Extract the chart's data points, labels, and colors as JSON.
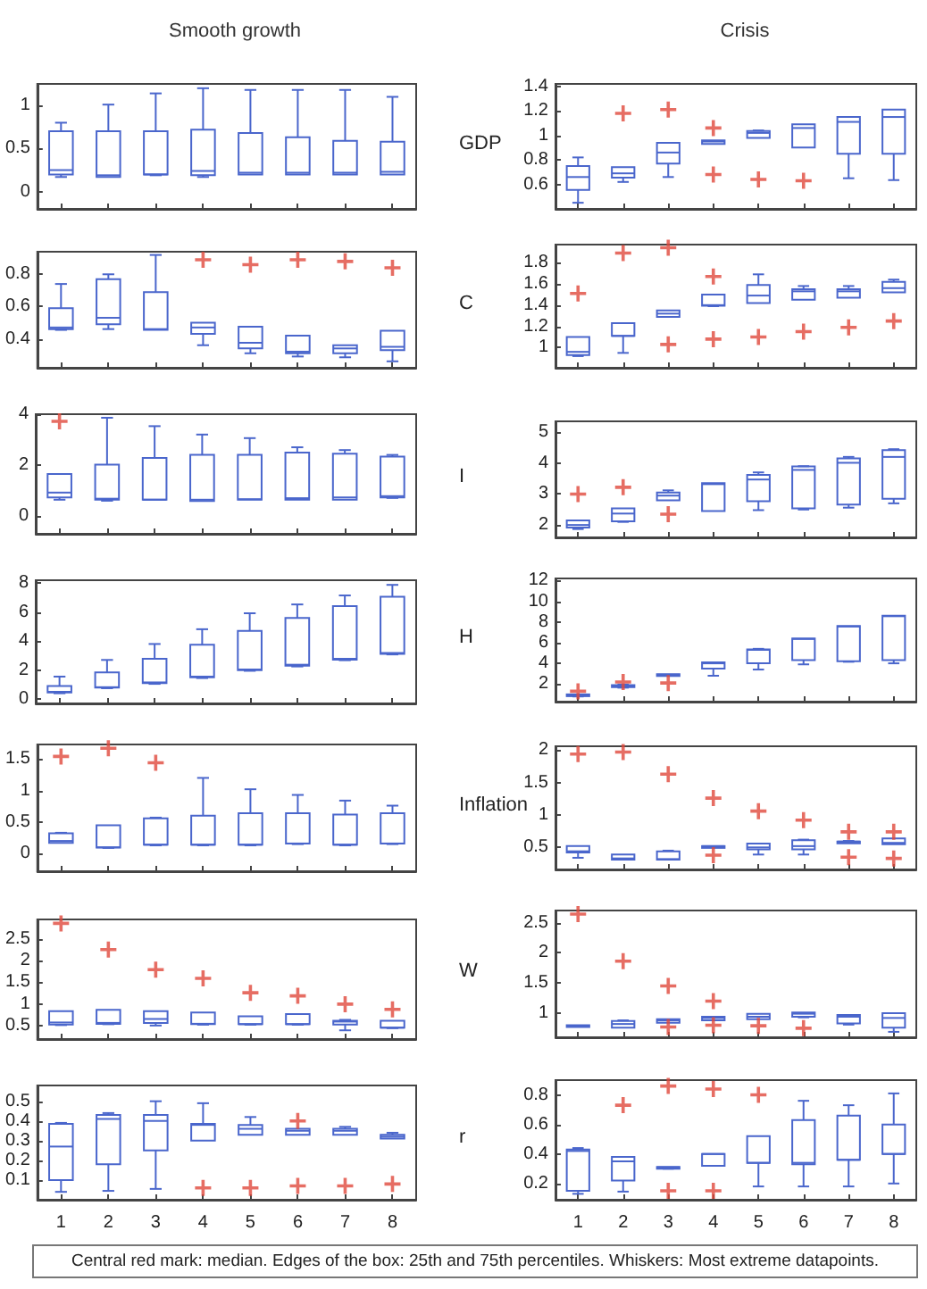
{
  "chart_data": [
    {
      "type": "box",
      "title": "Smooth growth",
      "categories": [
        "1",
        "2",
        "3",
        "4",
        "5",
        "6",
        "7",
        "8"
      ],
      "ylim": [
        -0.2,
        1.25
      ],
      "yticks": [
        0,
        0.5,
        1
      ],
      "tick_labels": "y",
      "grid": false,
      "marker": "cross",
      "series": [
        {
          "type": "box",
          "color": "#4a66cc",
          "boxes": [
            {
              "low": 0.17,
              "q1": 0.2,
              "median": 0.25,
              "q3": 0.7,
              "high": 0.8
            },
            {
              "low": 0.17,
              "q1": 0.17,
              "median": 0.19,
              "q3": 0.7,
              "high": 1.01
            },
            {
              "low": 0.19,
              "q1": 0.2,
              "median": 0.2,
              "q3": 0.7,
              "high": 1.14
            },
            {
              "low": 0.17,
              "q1": 0.19,
              "median": 0.24,
              "q3": 0.72,
              "high": 1.2
            },
            {
              "low": 0.2,
              "q1": 0.2,
              "median": 0.22,
              "q3": 0.68,
              "high": 1.18
            },
            {
              "low": 0.2,
              "q1": 0.2,
              "median": 0.22,
              "q3": 0.63,
              "high": 1.18
            },
            {
              "low": 0.2,
              "q1": 0.2,
              "median": 0.22,
              "q3": 0.59,
              "high": 1.18
            },
            {
              "low": 0.2,
              "q1": 0.2,
              "median": 0.23,
              "q3": 0.58,
              "high": 1.1
            }
          ]
        }
      ]
    },
    {
      "type": "box",
      "title": "Crisis",
      "ylabel": "GDP",
      "categories": [
        "1",
        "2",
        "3",
        "4",
        "5",
        "6",
        "7",
        "8"
      ],
      "ylim": [
        0.4,
        1.42
      ],
      "yticks": [
        0.6,
        0.8,
        1,
        1.2,
        1.4
      ],
      "tick_labels": "y",
      "grid": false,
      "marker": "cross",
      "series": [
        {
          "type": "box",
          "color": "#4a66cc",
          "boxes": [
            {
              "low": 0.45,
              "q1": 0.555,
              "median": 0.66,
              "q3": 0.75,
              "high": 0.82
            },
            {
              "low": 0.62,
              "q1": 0.655,
              "median": 0.69,
              "q3": 0.74,
              "high": 0.74
            },
            {
              "low": 0.66,
              "q1": 0.77,
              "median": 0.86,
              "q3": 0.94,
              "high": 0.94
            },
            {
              "low": 0.93,
              "q1": 0.93,
              "median": 0.95,
              "q3": 0.96,
              "high": 0.96
            },
            {
              "low": 0.98,
              "q1": 0.98,
              "median": 1.02,
              "q3": 1.035,
              "high": 1.04
            },
            {
              "low": 0.9,
              "q1": 0.9,
              "median": 1.06,
              "q3": 1.09,
              "high": 1.09
            },
            {
              "low": 0.65,
              "q1": 0.85,
              "median": 1.11,
              "q3": 1.15,
              "high": 1.15
            },
            {
              "low": 0.635,
              "q1": 0.85,
              "median": 1.15,
              "q3": 1.21,
              "high": 1.21
            }
          ]
        },
        {
          "type": "scatter",
          "color": "#e0483c",
          "x": [
            "2",
            "3",
            "4",
            "4",
            "5",
            "6"
          ],
          "values": [
            1.18,
            1.21,
            1.06,
            0.68,
            0.64,
            0.63
          ]
        }
      ]
    },
    {
      "type": "box",
      "categories": [
        "1",
        "2",
        "3",
        "4",
        "5",
        "6",
        "7",
        "8"
      ],
      "ylim": [
        0.22,
        0.94
      ],
      "yticks": [
        0.4,
        0.6,
        0.8
      ],
      "tick_labels": "y",
      "grid": false,
      "marker": "cross",
      "series": [
        {
          "type": "box",
          "color": "#4a66cc",
          "boxes": [
            {
              "low": 0.455,
              "q1": 0.46,
              "median": 0.47,
              "q3": 0.59,
              "high": 0.74
            },
            {
              "low": 0.46,
              "q1": 0.49,
              "median": 0.53,
              "q3": 0.77,
              "high": 0.8
            },
            {
              "low": 0.455,
              "q1": 0.455,
              "median": 0.46,
              "q3": 0.69,
              "high": 0.92
            },
            {
              "low": 0.36,
              "q1": 0.43,
              "median": 0.47,
              "q3": 0.5,
              "high": 0.5
            },
            {
              "low": 0.31,
              "q1": 0.34,
              "median": 0.375,
              "q3": 0.475,
              "high": 0.475
            },
            {
              "low": 0.29,
              "q1": 0.31,
              "median": 0.32,
              "q3": 0.42,
              "high": 0.42
            },
            {
              "low": 0.285,
              "q1": 0.31,
              "median": 0.34,
              "q3": 0.36,
              "high": 0.36
            },
            {
              "low": 0.26,
              "q1": 0.33,
              "median": 0.35,
              "q3": 0.45,
              "high": 0.45
            }
          ]
        },
        {
          "type": "scatter",
          "color": "#e0483c",
          "x": [
            "4",
            "5",
            "6",
            "7",
            "8"
          ],
          "values": [
            0.89,
            0.86,
            0.89,
            0.88,
            0.84
          ]
        }
      ]
    },
    {
      "type": "box",
      "ylabel": "C",
      "categories": [
        "1",
        "2",
        "3",
        "4",
        "5",
        "6",
        "7",
        "8"
      ],
      "ylim": [
        0.81,
        1.97
      ],
      "yticks": [
        1,
        1.2,
        1.4,
        1.6,
        1.8
      ],
      "tick_labels": "y",
      "grid": false,
      "marker": "cross",
      "series": [
        {
          "type": "box",
          "color": "#4a66cc",
          "boxes": [
            {
              "low": 0.92,
              "q1": 0.93,
              "median": 0.96,
              "q3": 1.1,
              "high": 1.1
            },
            {
              "low": 0.95,
              "q1": 1.11,
              "median": 1.11,
              "q3": 1.23,
              "high": 1.23
            },
            {
              "low": 1.29,
              "q1": 1.29,
              "median": 1.32,
              "q3": 1.35,
              "high": 1.35
            },
            {
              "low": 1.39,
              "q1": 1.395,
              "median": 1.4,
              "q3": 1.5,
              "high": 1.5
            },
            {
              "low": 1.42,
              "q1": 1.42,
              "median": 1.49,
              "q3": 1.59,
              "high": 1.69
            },
            {
              "low": 1.45,
              "q1": 1.45,
              "median": 1.53,
              "q3": 1.55,
              "high": 1.58
            },
            {
              "low": 1.47,
              "q1": 1.47,
              "median": 1.53,
              "q3": 1.55,
              "high": 1.58
            },
            {
              "low": 1.52,
              "q1": 1.52,
              "median": 1.56,
              "q3": 1.62,
              "high": 1.64
            }
          ]
        },
        {
          "type": "scatter",
          "color": "#e0483c",
          "x": [
            "1",
            "2",
            "3",
            "3",
            "4",
            "4",
            "5",
            "6",
            "7",
            "8"
          ],
          "values": [
            1.51,
            1.89,
            1.94,
            1.03,
            1.67,
            1.08,
            1.1,
            1.15,
            1.19,
            1.25
          ]
        }
      ]
    },
    {
      "type": "box",
      "categories": [
        "1",
        "2",
        "3",
        "4",
        "5",
        "6",
        "7",
        "8"
      ],
      "ylim": [
        -0.7,
        4
      ],
      "yticks": [
        0,
        2,
        4
      ],
      "tick_labels": "y",
      "grid": false,
      "marker": "cross",
      "series": [
        {
          "type": "box",
          "color": "#4a66cc",
          "boxes": [
            {
              "low": 0.64,
              "q1": 0.73,
              "median": 0.92,
              "q3": 1.65,
              "high": 1.65
            },
            {
              "low": 0.6,
              "q1": 0.64,
              "median": 0.68,
              "q3": 2.02,
              "high": 3.86
            },
            {
              "low": 0.64,
              "q1": 0.64,
              "median": 0.64,
              "q3": 2.28,
              "high": 3.53
            },
            {
              "low": 0.59,
              "q1": 0.59,
              "median": 0.64,
              "q3": 2.4,
              "high": 3.2
            },
            {
              "low": 0.64,
              "q1": 0.64,
              "median": 0.66,
              "q3": 2.4,
              "high": 3.06
            },
            {
              "low": 0.64,
              "q1": 0.64,
              "median": 0.7,
              "q3": 2.49,
              "high": 2.7
            },
            {
              "low": 0.64,
              "q1": 0.64,
              "median": 0.73,
              "q3": 2.45,
              "high": 2.59
            },
            {
              "low": 0.71,
              "q1": 0.73,
              "median": 0.78,
              "q3": 2.33,
              "high": 2.4
            }
          ]
        },
        {
          "type": "scatter",
          "color": "#e0483c",
          "x": [
            "1"
          ],
          "values": [
            3.72
          ]
        }
      ]
    },
    {
      "type": "box",
      "ylabel": "I",
      "categories": [
        "1",
        "2",
        "3",
        "4",
        "5",
        "6",
        "7",
        "8"
      ],
      "ylim": [
        1.6,
        5.35
      ],
      "yticks": [
        2,
        3,
        4,
        5
      ],
      "tick_labels": "y",
      "grid": false,
      "marker": "cross",
      "series": [
        {
          "type": "box",
          "color": "#4a66cc",
          "boxes": [
            {
              "low": 1.87,
              "q1": 1.92,
              "median": 2,
              "q3": 2.15,
              "high": 2.15
            },
            {
              "low": 2.1,
              "q1": 2.12,
              "median": 2.37,
              "q3": 2.54,
              "high": 2.54
            },
            {
              "low": 2.8,
              "q1": 2.8,
              "median": 2.95,
              "q3": 3.05,
              "high": 3.12
            },
            {
              "low": 2.45,
              "q1": 2.45,
              "median": 3.32,
              "q3": 3.35,
              "high": 3.35
            },
            {
              "low": 2.48,
              "q1": 2.77,
              "median": 3.47,
              "q3": 3.62,
              "high": 3.7
            },
            {
              "low": 2.5,
              "q1": 2.54,
              "median": 3.78,
              "q3": 3.89,
              "high": 3.9
            },
            {
              "low": 2.56,
              "q1": 2.66,
              "median": 4.01,
              "q3": 4.15,
              "high": 4.2
            },
            {
              "low": 2.7,
              "q1": 2.85,
              "median": 4.2,
              "q3": 4.42,
              "high": 4.45
            }
          ]
        },
        {
          "type": "scatter",
          "color": "#e0483c",
          "x": [
            "1",
            "2",
            "3"
          ],
          "values": [
            3,
            3.22,
            2.35
          ]
        }
      ]
    },
    {
      "type": "box",
      "categories": [
        "1",
        "2",
        "3",
        "4",
        "5",
        "6",
        "7",
        "8"
      ],
      "ylim": [
        -0.3,
        8.2
      ],
      "yticks": [
        0,
        2,
        4,
        6,
        8
      ],
      "tick_labels": "y",
      "grid": false,
      "marker": "cross",
      "series": [
        {
          "type": "box",
          "color": "#4a66cc",
          "boxes": [
            {
              "low": 0.4,
              "q1": 0.45,
              "median": 0.5,
              "q3": 0.9,
              "high": 1.55
            },
            {
              "low": 0.75,
              "q1": 0.8,
              "median": 0.82,
              "q3": 1.84,
              "high": 2.7
            },
            {
              "low": 1.05,
              "q1": 1.1,
              "median": 1.15,
              "q3": 2.78,
              "high": 3.8
            },
            {
              "low": 1.45,
              "q1": 1.5,
              "median": 1.55,
              "q3": 3.75,
              "high": 4.82
            },
            {
              "low": 1.95,
              "q1": 2,
              "median": 2.04,
              "q3": 4.7,
              "high": 5.92
            },
            {
              "low": 2.25,
              "q1": 2.3,
              "median": 2.37,
              "q3": 5.6,
              "high": 6.53
            },
            {
              "low": 2.68,
              "q1": 2.72,
              "median": 2.78,
              "q3": 6.41,
              "high": 7.15
            },
            {
              "low": 3.08,
              "q1": 3.12,
              "median": 3.18,
              "q3": 7.06,
              "high": 7.88
            }
          ]
        }
      ]
    },
    {
      "type": "box",
      "ylabel": "H",
      "categories": [
        "1",
        "2",
        "3",
        "4",
        "5",
        "6",
        "7",
        "8"
      ],
      "ylim": [
        0.3,
        12.2
      ],
      "yticks": [
        2,
        4,
        6,
        8,
        10,
        12
      ],
      "tick_labels": "y",
      "grid": false,
      "marker": "cross",
      "series": [
        {
          "type": "box",
          "color": "#4a66cc",
          "boxes": [
            {
              "low": 0.8,
              "q1": 0.85,
              "median": 0.9,
              "q3": 1,
              "high": 1
            },
            {
              "low": 1.65,
              "q1": 1.7,
              "median": 1.8,
              "q3": 1.9,
              "high": 1.95
            },
            {
              "low": 2.85,
              "q1": 2.85,
              "median": 2.9,
              "q3": 2.95,
              "high": 2.95
            },
            {
              "low": 2.8,
              "q1": 3.5,
              "median": 4,
              "q3": 4.1,
              "high": 4.1
            },
            {
              "low": 3.4,
              "q1": 4,
              "median": 5.3,
              "q3": 5.35,
              "high": 5.4
            },
            {
              "low": 3.9,
              "q1": 4.3,
              "median": 6.35,
              "q3": 6.4,
              "high": 6.4
            },
            {
              "low": 4.15,
              "q1": 4.2,
              "median": 7.55,
              "q3": 7.6,
              "high": 7.6
            },
            {
              "low": 4,
              "q1": 4.3,
              "median": 8.55,
              "q3": 8.6,
              "high": 8.6
            }
          ]
        },
        {
          "type": "scatter",
          "color": "#e0483c",
          "x": [
            "1",
            "2",
            "3"
          ],
          "values": [
            1.3,
            2.2,
            2.1
          ]
        }
      ]
    },
    {
      "type": "box",
      "categories": [
        "1",
        "2",
        "3",
        "4",
        "5",
        "6",
        "7",
        "8"
      ],
      "ylim": [
        -0.28,
        1.73
      ],
      "yticks": [
        0,
        0.5,
        1,
        1.5
      ],
      "tick_labels": "y",
      "grid": false,
      "marker": "cross",
      "series": [
        {
          "type": "box",
          "color": "#4a66cc",
          "boxes": [
            {
              "low": 0.17,
              "q1": 0.17,
              "median": 0.2,
              "q3": 0.32,
              "high": 0.33
            },
            {
              "low": 0.09,
              "q1": 0.095,
              "median": 0.1,
              "q3": 0.45,
              "high": 0.45
            },
            {
              "low": 0.13,
              "q1": 0.14,
              "median": 0.14,
              "q3": 0.56,
              "high": 0.57
            },
            {
              "low": 0.13,
              "q1": 0.14,
              "median": 0.14,
              "q3": 0.6,
              "high": 1.2
            },
            {
              "low": 0.13,
              "q1": 0.14,
              "median": 0.14,
              "q3": 0.64,
              "high": 1.02
            },
            {
              "low": 0.15,
              "q1": 0.16,
              "median": 0.16,
              "q3": 0.64,
              "high": 0.93
            },
            {
              "low": 0.13,
              "q1": 0.14,
              "median": 0.14,
              "q3": 0.62,
              "high": 0.84
            },
            {
              "low": 0.15,
              "q1": 0.16,
              "median": 0.16,
              "q3": 0.64,
              "high": 0.76
            }
          ]
        },
        {
          "type": "scatter",
          "color": "#e0483c",
          "x": [
            "1",
            "2",
            "3"
          ],
          "values": [
            1.54,
            1.67,
            1.44
          ]
        }
      ]
    },
    {
      "type": "box",
      "ylabel": "Inflation",
      "categories": [
        "1",
        "2",
        "3",
        "4",
        "5",
        "6",
        "7",
        "8"
      ],
      "ylim": [
        0.16,
        2.06
      ],
      "yticks": [
        0.5,
        1,
        1.5,
        2
      ],
      "tick_labels": "y",
      "grid": false,
      "marker": "cross",
      "series": [
        {
          "type": "box",
          "color": "#4a66cc",
          "boxes": [
            {
              "low": 0.34,
              "q1": 0.42,
              "median": 0.44,
              "q3": 0.52,
              "high": 0.52
            },
            {
              "low": 0.31,
              "q1": 0.31,
              "median": 0.33,
              "q3": 0.39,
              "high": 0.39
            },
            {
              "low": 0.31,
              "q1": 0.31,
              "median": 0.32,
              "q3": 0.44,
              "high": 0.45
            },
            {
              "low": 0.51,
              "q1": 0.51,
              "median": 0.52,
              "q3": 0.52,
              "high": 0.52
            },
            {
              "low": 0.39,
              "q1": 0.47,
              "median": 0.5,
              "q3": 0.56,
              "high": 0.56
            },
            {
              "low": 0.39,
              "q1": 0.47,
              "median": 0.52,
              "q3": 0.61,
              "high": 0.62
            },
            {
              "low": 0.58,
              "q1": 0.58,
              "median": 0.59,
              "q3": 0.59,
              "high": 0.6
            },
            {
              "low": 0.55,
              "q1": 0.55,
              "median": 0.57,
              "q3": 0.64,
              "high": 0.64
            }
          ]
        },
        {
          "type": "scatter",
          "color": "#e0483c",
          "x": [
            "1",
            "2",
            "3",
            "4",
            "4",
            "5",
            "6",
            "7",
            "7",
            "8",
            "8"
          ],
          "values": [
            1.94,
            1.97,
            1.63,
            1.26,
            0.38,
            1.06,
            0.92,
            0.74,
            0.35,
            0.74,
            0.33
          ]
        }
      ]
    },
    {
      "type": "box",
      "categories": [
        "1",
        "2",
        "3",
        "4",
        "5",
        "6",
        "7",
        "8"
      ],
      "ylim": [
        0.2,
        2.94
      ],
      "yticks": [
        0.5,
        1,
        1.5,
        2,
        2.5
      ],
      "tick_labels": "y",
      "grid": false,
      "marker": "cross",
      "series": [
        {
          "type": "box",
          "color": "#4a66cc",
          "boxes": [
            {
              "low": 0.52,
              "q1": 0.53,
              "median": 0.58,
              "q3": 0.84,
              "high": 0.84
            },
            {
              "low": 0.54,
              "q1": 0.55,
              "median": 0.57,
              "q3": 0.87,
              "high": 0.87
            },
            {
              "low": 0.51,
              "q1": 0.57,
              "median": 0.66,
              "q3": 0.84,
              "high": 0.84
            },
            {
              "low": 0.53,
              "q1": 0.54,
              "median": 0.55,
              "q3": 0.81,
              "high": 0.81
            },
            {
              "low": 0.53,
              "q1": 0.54,
              "median": 0.54,
              "q3": 0.72,
              "high": 0.72
            },
            {
              "low": 0.53,
              "q1": 0.54,
              "median": 0.54,
              "q3": 0.77,
              "high": 0.77
            },
            {
              "low": 0.4,
              "q1": 0.53,
              "median": 0.6,
              "q3": 0.62,
              "high": 0.64
            },
            {
              "low": 0.45,
              "q1": 0.46,
              "median": 0.46,
              "q3": 0.62,
              "high": 0.62
            }
          ]
        },
        {
          "type": "scatter",
          "color": "#e0483c",
          "x": [
            "1",
            "2",
            "3",
            "4",
            "5",
            "6",
            "7",
            "8"
          ],
          "values": [
            2.85,
            2.25,
            1.79,
            1.59,
            1.26,
            1.19,
            1,
            0.88
          ]
        }
      ]
    },
    {
      "type": "box",
      "ylabel": "W",
      "categories": [
        "1",
        "2",
        "3",
        "4",
        "5",
        "6",
        "7",
        "8"
      ],
      "ylim": [
        0.6,
        2.7
      ],
      "yticks": [
        1,
        1.5,
        2,
        2.5
      ],
      "tick_labels": "y",
      "grid": false,
      "marker": "cross",
      "series": [
        {
          "type": "box",
          "color": "#4a66cc",
          "boxes": [
            {
              "low": 0.77,
              "q1": 0.77,
              "median": 0.78,
              "q3": 0.8,
              "high": 0.8
            },
            {
              "low": 0.76,
              "q1": 0.76,
              "median": 0.82,
              "q3": 0.87,
              "high": 0.88
            },
            {
              "low": 0.84,
              "q1": 0.84,
              "median": 0.88,
              "q3": 0.9,
              "high": 0.9
            },
            {
              "low": 0.88,
              "q1": 0.88,
              "median": 0.92,
              "q3": 0.94,
              "high": 0.94
            },
            {
              "low": 0.9,
              "q1": 0.9,
              "median": 0.94,
              "q3": 0.99,
              "high": 0.99
            },
            {
              "low": 0.93,
              "q1": 0.94,
              "median": 0.99,
              "q3": 1.01,
              "high": 1.01
            },
            {
              "low": 0.81,
              "q1": 0.83,
              "median": 0.94,
              "q3": 0.97,
              "high": 0.97
            },
            {
              "low": 0.69,
              "q1": 0.76,
              "median": 0.92,
              "q3": 1,
              "high": 1
            }
          ]
        },
        {
          "type": "scatter",
          "color": "#e0483c",
          "x": [
            "1",
            "2",
            "3",
            "3",
            "4",
            "4",
            "5",
            "6"
          ],
          "values": [
            2.64,
            1.86,
            1.45,
            0.77,
            1.2,
            0.8,
            0.79,
            0.75
          ]
        }
      ]
    },
    {
      "type": "box",
      "categories": [
        "1",
        "2",
        "3",
        "4",
        "5",
        "6",
        "7",
        "8"
      ],
      "ylim": [
        0,
        0.58
      ],
      "yticks": [
        0.1,
        0.2,
        0.3,
        0.4,
        0.5
      ],
      "grid": false,
      "marker": "cross",
      "series": [
        {
          "type": "box",
          "color": "#4a66cc",
          "boxes": [
            {
              "low": 0.04,
              "q1": 0.1,
              "median": 0.27,
              "q3": 0.385,
              "high": 0.39
            },
            {
              "low": 0.045,
              "q1": 0.18,
              "median": 0.41,
              "q3": 0.43,
              "high": 0.44
            },
            {
              "low": 0.055,
              "q1": 0.25,
              "median": 0.4,
              "q3": 0.43,
              "high": 0.5
            },
            {
              "low": 0.3,
              "q1": 0.3,
              "median": 0.38,
              "q3": 0.385,
              "high": 0.49
            },
            {
              "low": 0.33,
              "q1": 0.33,
              "median": 0.36,
              "q3": 0.38,
              "high": 0.42
            },
            {
              "low": 0.33,
              "q1": 0.33,
              "median": 0.35,
              "q3": 0.36,
              "high": 0.36
            },
            {
              "low": 0.33,
              "q1": 0.33,
              "median": 0.35,
              "q3": 0.36,
              "high": 0.37
            },
            {
              "low": 0.31,
              "q1": 0.31,
              "median": 0.32,
              "q3": 0.33,
              "high": 0.34
            }
          ]
        },
        {
          "type": "scatter",
          "color": "#e0483c",
          "x": [
            "4",
            "5",
            "6",
            "6",
            "7",
            "8"
          ],
          "values": [
            0.06,
            0.06,
            0.4,
            0.07,
            0.07,
            0.08
          ]
        }
      ]
    },
    {
      "type": "box",
      "ylabel": "r",
      "categories": [
        "1",
        "2",
        "3",
        "4",
        "5",
        "6",
        "7",
        "8"
      ],
      "ylim": [
        0.09,
        0.9
      ],
      "yticks": [
        0.2,
        0.4,
        0.6,
        0.8
      ],
      "grid": false,
      "marker": "cross",
      "annotations": [
        "Central red mark: median. Edges of the box: 25th and 75th percentiles. Whiskers: Most extreme datapoints."
      ],
      "series": [
        {
          "type": "box",
          "color": "#4a66cc",
          "boxes": [
            {
              "low": 0.13,
              "q1": 0.15,
              "median": 0.42,
              "q3": 0.43,
              "high": 0.44
            },
            {
              "low": 0.145,
              "q1": 0.22,
              "median": 0.35,
              "q3": 0.38,
              "high": 0.38
            },
            {
              "low": 0.3,
              "q1": 0.305,
              "median": 0.31,
              "q3": 0.312,
              "high": 0.312
            },
            {
              "low": 0.32,
              "q1": 0.32,
              "median": 0.4,
              "q3": 0.4,
              "high": 0.4
            },
            {
              "low": 0.18,
              "q1": 0.34,
              "median": 0.34,
              "q3": 0.52,
              "high": 0.52
            },
            {
              "low": 0.18,
              "q1": 0.33,
              "median": 0.34,
              "q3": 0.63,
              "high": 0.76
            },
            {
              "low": 0.18,
              "q1": 0.36,
              "median": 0.36,
              "q3": 0.66,
              "high": 0.73
            },
            {
              "low": 0.2,
              "q1": 0.4,
              "median": 0.4,
              "q3": 0.6,
              "high": 0.81
            }
          ]
        },
        {
          "type": "scatter",
          "color": "#e0483c",
          "x": [
            "2",
            "3",
            "3",
            "4",
            "4",
            "5"
          ],
          "values": [
            0.73,
            0.86,
            0.15,
            0.84,
            0.15,
            0.8
          ]
        }
      ]
    }
  ]
}
